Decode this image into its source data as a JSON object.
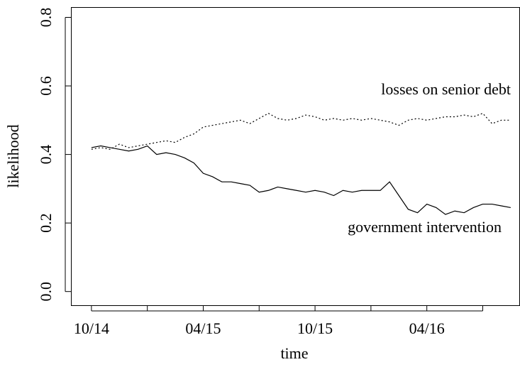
{
  "chart_data": {
    "type": "line",
    "x_label": "time",
    "y_label": "likelihood",
    "x": [
      0,
      0.5,
      1,
      1.5,
      2,
      2.5,
      3,
      3.5,
      4,
      4.5,
      5,
      5.5,
      6,
      6.5,
      7,
      7.5,
      8,
      8.5,
      9,
      9.5,
      10,
      10.5,
      11,
      11.5,
      12,
      12.5,
      13,
      13.5,
      14,
      14.5,
      15,
      15.5,
      16,
      16.5,
      17,
      17.5,
      18,
      18.5,
      19,
      19.5,
      20,
      20.5,
      21,
      21.5,
      22,
      22.5
    ],
    "series": [
      {
        "name": "losses on senior debt",
        "color": "#000000",
        "dash": "dotted",
        "values": [
          0.415,
          0.42,
          0.415,
          0.43,
          0.42,
          0.425,
          0.43,
          0.435,
          0.44,
          0.435,
          0.45,
          0.46,
          0.48,
          0.485,
          0.49,
          0.495,
          0.5,
          0.49,
          0.505,
          0.52,
          0.505,
          0.5,
          0.505,
          0.515,
          0.51,
          0.5,
          0.505,
          0.5,
          0.505,
          0.5,
          0.505,
          0.5,
          0.495,
          0.485,
          0.5,
          0.505,
          0.5,
          0.505,
          0.51,
          0.51,
          0.515,
          0.51,
          0.52,
          0.49,
          0.5,
          0.5
        ]
      },
      {
        "name": "government intervention",
        "color": "#000000",
        "dash": "solid",
        "values": [
          0.42,
          0.425,
          0.42,
          0.415,
          0.41,
          0.415,
          0.425,
          0.4,
          0.405,
          0.4,
          0.39,
          0.375,
          0.345,
          0.335,
          0.32,
          0.32,
          0.315,
          0.31,
          0.29,
          0.295,
          0.305,
          0.3,
          0.295,
          0.29,
          0.295,
          0.29,
          0.28,
          0.295,
          0.29,
          0.295,
          0.295,
          0.295,
          0.32,
          0.28,
          0.24,
          0.23,
          0.255,
          0.245,
          0.225,
          0.235,
          0.23,
          0.245,
          0.255,
          0.255,
          0.25,
          0.245
        ]
      }
    ],
    "xlim": [
      -1.1,
      23.0
    ],
    "xticks": [
      {
        "value": 0,
        "label": "10/14"
      },
      {
        "value": 6,
        "label": "04/15"
      },
      {
        "value": 12,
        "label": "10/15"
      },
      {
        "value": 18,
        "label": "04/16"
      }
    ],
    "xminor_ticks": [
      3,
      9,
      15,
      21
    ],
    "ylim": [
      -0.04,
      0.83
    ],
    "yticks": [
      {
        "value": 0,
        "label": "0.0"
      },
      0.2,
      0.4,
      0.6,
      0.8
    ]
  }
}
